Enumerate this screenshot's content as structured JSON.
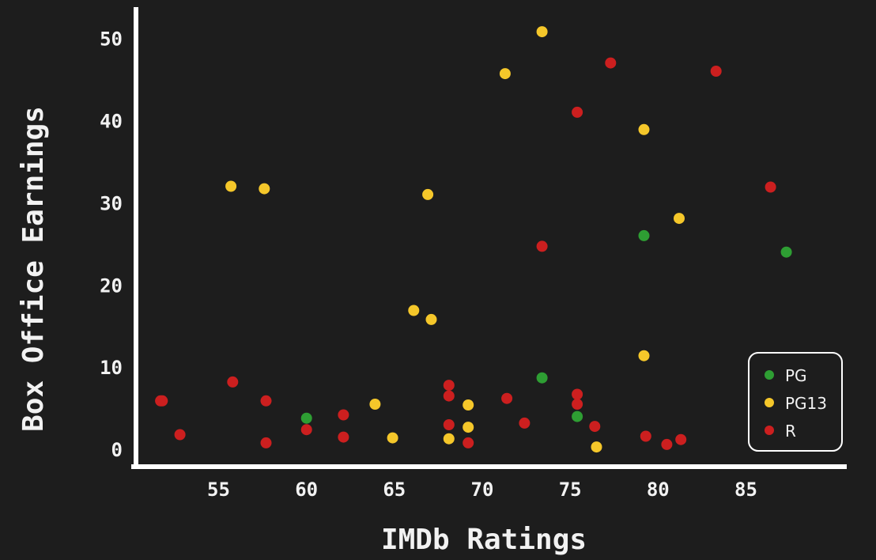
{
  "chart_data": {
    "type": "scatter",
    "title": "",
    "xlabel": "IMDb Ratings",
    "ylabel": "Box Office Earnings",
    "xlim": [
      50.3,
      90.6
    ],
    "ylim": [
      -2.1,
      53.5
    ],
    "x_ticks": [
      55,
      60,
      65,
      70,
      75,
      80,
      85
    ],
    "y_ticks": [
      0,
      10,
      20,
      30,
      40,
      50
    ],
    "grid": false,
    "legend_position": "bottom-right",
    "series": [
      {
        "name": "PG",
        "color": "#2e9e33",
        "points": [
          {
            "x": 60,
            "y": 3.8
          },
          {
            "x": 73.4,
            "y": 8.7
          },
          {
            "x": 75.4,
            "y": 4.0
          },
          {
            "x": 79.2,
            "y": 26
          },
          {
            "x": 87.3,
            "y": 24
          }
        ]
      },
      {
        "name": "PG13",
        "color": "#f5c72a",
        "points": [
          {
            "x": 55.7,
            "y": 32
          },
          {
            "x": 57.6,
            "y": 31.7
          },
          {
            "x": 63.9,
            "y": 5.5
          },
          {
            "x": 64.9,
            "y": 1.4
          },
          {
            "x": 66.1,
            "y": 16.9
          },
          {
            "x": 66.9,
            "y": 31
          },
          {
            "x": 67.1,
            "y": 15.8
          },
          {
            "x": 68.1,
            "y": 1.3
          },
          {
            "x": 69.2,
            "y": 5.4
          },
          {
            "x": 69.2,
            "y": 2.7
          },
          {
            "x": 71.3,
            "y": 45.7
          },
          {
            "x": 73.4,
            "y": 50.8
          },
          {
            "x": 76.5,
            "y": 0.3
          },
          {
            "x": 79.2,
            "y": 38.9
          },
          {
            "x": 79.2,
            "y": 11.4
          },
          {
            "x": 81.2,
            "y": 28.1
          }
        ]
      },
      {
        "name": "R",
        "color": "#cc1f1f",
        "points": [
          {
            "x": 51.7,
            "y": 5.9
          },
          {
            "x": 51.8,
            "y": 5.9
          },
          {
            "x": 52.8,
            "y": 1.8
          },
          {
            "x": 55.8,
            "y": 8.2
          },
          {
            "x": 57.7,
            "y": 5.9
          },
          {
            "x": 57.7,
            "y": 0.8
          },
          {
            "x": 60,
            "y": 2.4
          },
          {
            "x": 62.1,
            "y": 4.2
          },
          {
            "x": 62.1,
            "y": 1.5
          },
          {
            "x": 68.1,
            "y": 7.8
          },
          {
            "x": 68.1,
            "y": 6.5
          },
          {
            "x": 68.1,
            "y": 3
          },
          {
            "x": 69.2,
            "y": 0.8
          },
          {
            "x": 71.4,
            "y": 6.2
          },
          {
            "x": 72.4,
            "y": 3.2
          },
          {
            "x": 73.4,
            "y": 24.7
          },
          {
            "x": 75.4,
            "y": 41
          },
          {
            "x": 75.4,
            "y": 6.7
          },
          {
            "x": 75.4,
            "y": 5.5
          },
          {
            "x": 76.4,
            "y": 2.8
          },
          {
            "x": 77.3,
            "y": 47
          },
          {
            "x": 79.3,
            "y": 1.6
          },
          {
            "x": 80.5,
            "y": 0.6
          },
          {
            "x": 81.3,
            "y": 1.2
          },
          {
            "x": 83.3,
            "y": 46
          },
          {
            "x": 86.4,
            "y": 31.9
          }
        ]
      }
    ]
  }
}
